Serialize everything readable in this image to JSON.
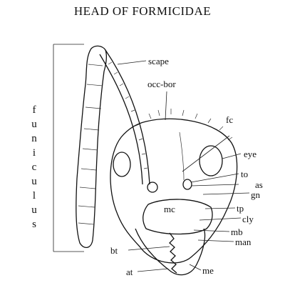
{
  "title": "HEAD OF FORMICIDAE",
  "labels": {
    "scape": "scape",
    "occ_bor": "occ-bor",
    "fc": "fc",
    "eye": "eye",
    "to": "to",
    "as": "as",
    "gn": "gn",
    "tp": "tp",
    "mc": "mc",
    "cly": "cly",
    "mb": "mb",
    "man": "man",
    "bt": "bt",
    "at": "at",
    "me": "me"
  },
  "vertical_label": [
    "f",
    "u",
    "n",
    "i",
    "c",
    "u",
    "l",
    "u",
    "s"
  ]
}
